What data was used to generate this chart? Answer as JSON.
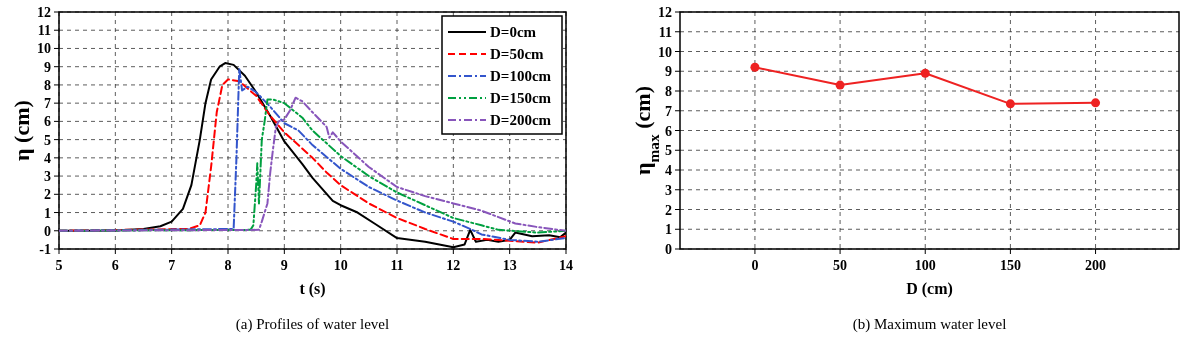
{
  "chart_data": [
    {
      "type": "line",
      "title": "(a) Profiles of water level",
      "xlabel": "t (s)",
      "ylabel": "η (cm)",
      "xlim": [
        5,
        14
      ],
      "ylim": [
        -1,
        12
      ],
      "xticks": [
        5,
        6,
        7,
        8,
        9,
        10,
        11,
        12,
        13,
        14
      ],
      "yticks": [
        -1,
        0,
        1,
        2,
        3,
        4,
        5,
        6,
        7,
        8,
        9,
        10,
        11,
        12
      ],
      "grid": true,
      "legend": "top right",
      "marker": "none",
      "series": [
        {
          "name": "D=0cm",
          "color": "#000000",
          "line_style": "solid",
          "x": [
            5,
            6,
            6.5,
            6.8,
            7.0,
            7.2,
            7.35,
            7.5,
            7.6,
            7.7,
            7.85,
            7.95,
            8.1,
            8.3,
            8.5,
            8.75,
            9.0,
            9.32,
            9.5,
            9.86,
            10,
            10.3,
            10.6,
            11.0,
            11.5,
            12.0,
            12.2,
            12.3,
            12.4,
            12.6,
            12.8,
            13.0,
            13.1,
            13.4,
            13.7,
            13.9,
            14
          ],
          "values": [
            0,
            0.02,
            0.1,
            0.25,
            0.5,
            1.2,
            2.5,
            5,
            7,
            8.3,
            9.0,
            9.2,
            9.1,
            8.5,
            7.6,
            6.3,
            4.9,
            3.66,
            2.9,
            1.64,
            1.4,
            1.0,
            0.4,
            -0.4,
            -0.6,
            -0.9,
            -0.75,
            0.05,
            -0.6,
            -0.5,
            -0.6,
            -0.5,
            -0.1,
            -0.3,
            -0.25,
            -0.35,
            -0.1
          ]
        },
        {
          "name": "D=50cm",
          "color": "#ff0000",
          "line_style": "dashed",
          "x": [
            5,
            7.3,
            7.5,
            7.6,
            7.7,
            7.8,
            7.9,
            8.0,
            8.2,
            8.5,
            8.75,
            9.0,
            9.25,
            9.5,
            9.75,
            10,
            10.5,
            11,
            11.5,
            12,
            12.5,
            13,
            13.5,
            14
          ],
          "values": [
            0,
            0.1,
            0.3,
            1.0,
            3.5,
            6.5,
            8.0,
            8.3,
            8.2,
            7.4,
            6.3,
            5.4,
            4.7,
            4.0,
            3.2,
            2.5,
            1.5,
            0.7,
            0.1,
            -0.45,
            -0.45,
            -0.55,
            -0.65,
            -0.3
          ]
        },
        {
          "name": "D=100cm",
          "color": "#3355cc",
          "line_style": "dashdot",
          "x": [
            5,
            8.1,
            8.15,
            8.2,
            8.25,
            8.35,
            8.5,
            8.75,
            9.0,
            9.25,
            9.5,
            10,
            10.5,
            11,
            11.5,
            12,
            12.3,
            12.5,
            13,
            13.5,
            14
          ],
          "values": [
            0,
            0.1,
            4.0,
            8.9,
            7.7,
            7.9,
            7.6,
            6.8,
            5.9,
            5.5,
            4.7,
            3.4,
            2.4,
            1.66,
            1.0,
            0.5,
            0.1,
            -0.2,
            -0.5,
            -0.6,
            -0.4
          ]
        },
        {
          "name": "D=150cm",
          "color": "#00a040",
          "line_style": "dashdotdot",
          "x": [
            5,
            8.4,
            8.45,
            8.5,
            8.52,
            8.55,
            8.6,
            8.65,
            8.7,
            8.8,
            9.0,
            9.32,
            9.5,
            10,
            10.5,
            11,
            11.5,
            12,
            12.5,
            12.8,
            13.5,
            14
          ],
          "values": [
            0,
            0.05,
            0.3,
            2.5,
            3.7,
            1.5,
            5.0,
            6.0,
            7.2,
            7.2,
            7.0,
            6.2,
            5.5,
            4.1,
            3.0,
            2.1,
            1.4,
            0.7,
            0.3,
            0.05,
            -0.1,
            0.0
          ]
        },
        {
          "name": "D=200cm",
          "color": "#8855bb",
          "line_style": "dashdot",
          "x": [
            5,
            8.55,
            8.6,
            8.7,
            8.75,
            8.8,
            8.85,
            8.9,
            9.0,
            9.1,
            9.2,
            9.32,
            9.5,
            9.75,
            9.8,
            9.86,
            10,
            10.5,
            11,
            11.5,
            12,
            12.5,
            13.1,
            13.5,
            14
          ],
          "values": [
            0,
            0.05,
            0.5,
            1.5,
            3.2,
            4.5,
            5.7,
            6.0,
            6.1,
            6.6,
            7.3,
            7.1,
            6.5,
            5.7,
            5.1,
            5.4,
            4.9,
            3.5,
            2.4,
            1.9,
            1.5,
            1.1,
            0.4,
            0.2,
            0.0
          ]
        }
      ]
    },
    {
      "type": "line",
      "title": "(b) Maximum water level",
      "xlabel": "D (cm)",
      "ylabel": "η$_{max}$ (cm)",
      "xlim": [
        -44,
        249
      ],
      "ylim": [
        0,
        12
      ],
      "xticks": [
        0,
        50,
        100,
        150,
        200
      ],
      "yticks": [
        0,
        1,
        2,
        3,
        4,
        5,
        6,
        7,
        8,
        9,
        10,
        11,
        12
      ],
      "grid": true,
      "marker": "circle",
      "line_style": "solid",
      "series": [
        {
          "color": "#ee2222",
          "x": [
            0,
            50,
            100,
            150,
            200
          ],
          "values": [
            9.2,
            8.3,
            8.9,
            7.35,
            7.4
          ]
        }
      ]
    }
  ]
}
